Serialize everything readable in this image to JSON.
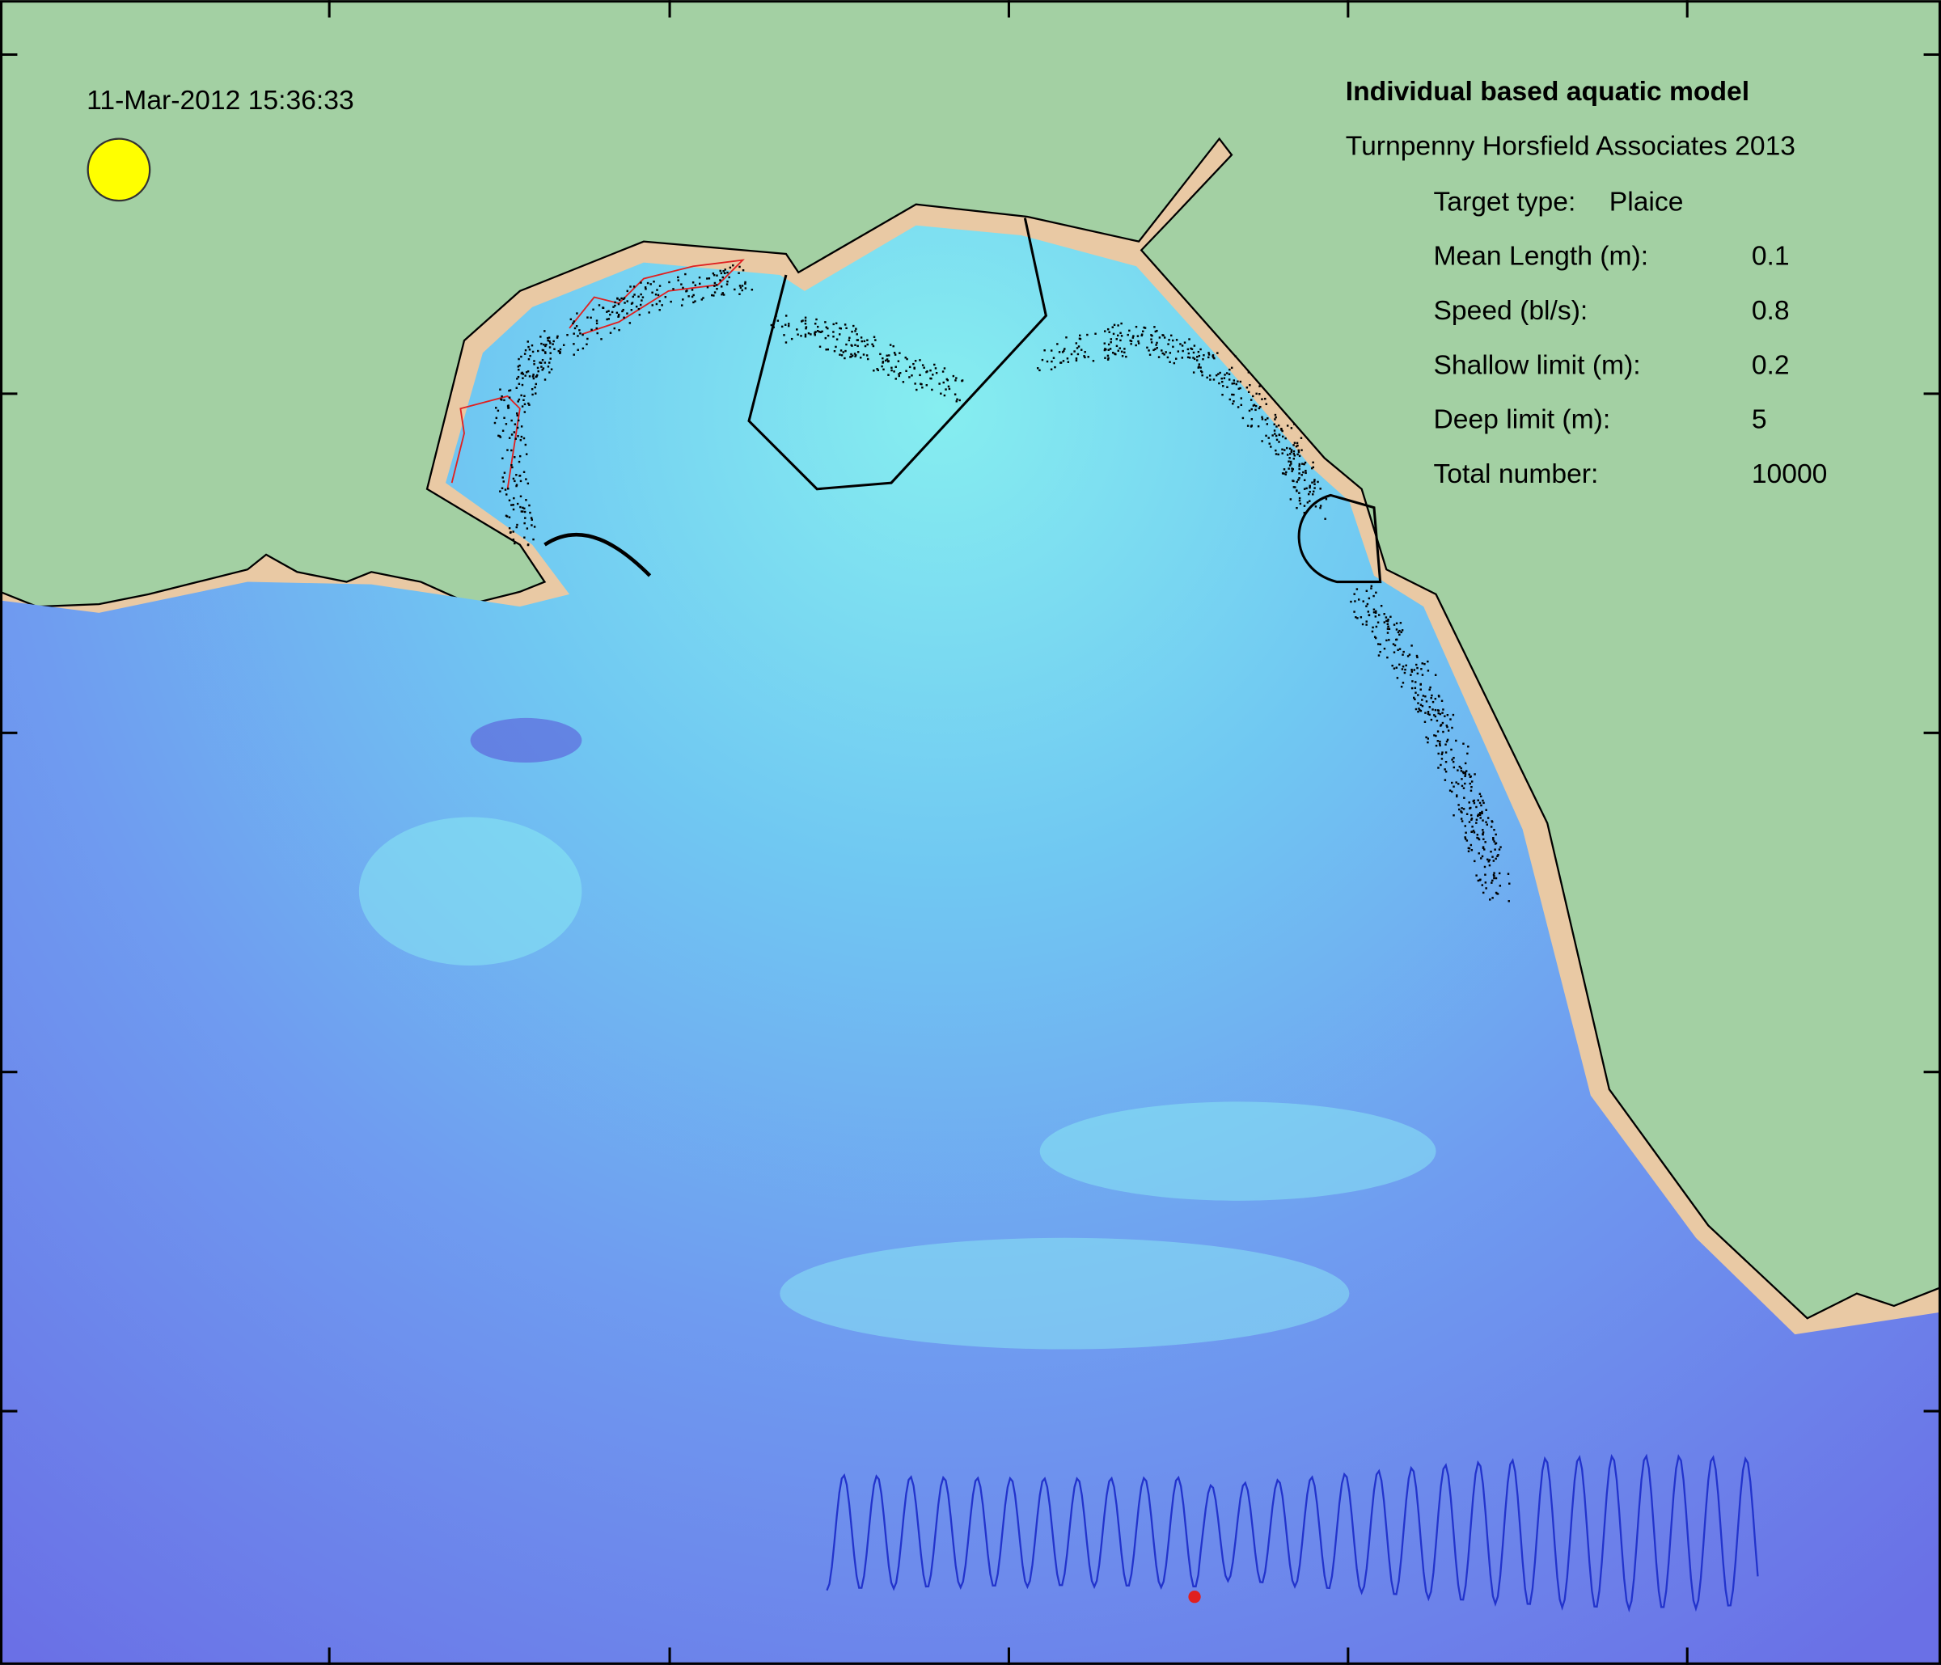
{
  "timestamp": "11-Mar-2012 15:36:33",
  "header": {
    "title": "Individual based aquatic model",
    "subtitle": "Turnpenny Horsfield Associates 2013"
  },
  "parameters": [
    {
      "label": "Target type:",
      "value": "Plaice"
    },
    {
      "label": "Mean Length (m):",
      "value": "0.1"
    },
    {
      "label": "Speed (bl/s):",
      "value": "0.8"
    },
    {
      "label": "Shallow limit (m):",
      "value": "0.2"
    },
    {
      "label": "Deep limit (m):",
      "value": "5"
    },
    {
      "label": "Total number:",
      "value": "10000"
    }
  ]
}
